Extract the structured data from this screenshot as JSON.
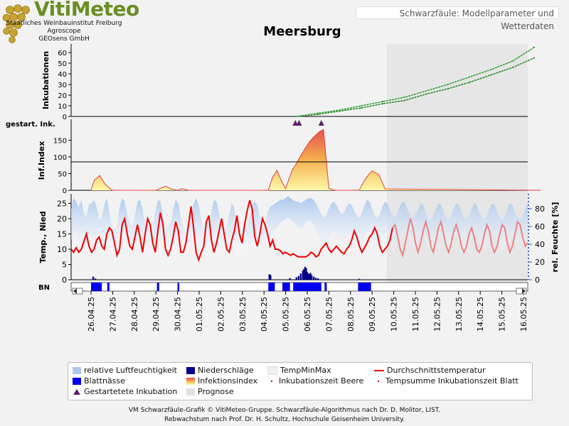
{
  "header": {
    "brand_title": "VitiMeteo",
    "brand_lines": [
      "Staatliches Weinbauinstitut Freiburg",
      "Agroscope",
      "GEOsens GmbH"
    ],
    "subtitle": "Schwarzfäule: Modellparameter und Wetterdaten"
  },
  "chart_data": {
    "type": "line",
    "title": "Meersburg",
    "dates": [
      "26.04.25",
      "27.04.25",
      "28.04.25",
      "29.04.25",
      "30.04.25",
      "01.05.25",
      "02.05.25",
      "03.05.25",
      "04.05.25",
      "05.05.25",
      "06.05.25",
      "07.05.25",
      "08.05.25",
      "09.05.25",
      "10.05.25",
      "11.05.25",
      "12.05.25",
      "13.05.25",
      "14.05.25",
      "15.05.25",
      "16.05.25"
    ],
    "forecast_start_day": 14,
    "panels": {
      "inkubationen": {
        "ylabel": "Inkubationen",
        "yticks": [
          0,
          10,
          20,
          30,
          40,
          50,
          60
        ],
        "series": [
          {
            "name": "Inkubationszeit Beere",
            "x": [
              9.5,
              10.5,
              11.5,
              12.5,
              13.5,
              14.5,
              15.5,
              16.5,
              17.5,
              18.5,
              19.5,
              20.5
            ],
            "y": [
              0,
              2,
              5,
              8,
              12,
              15,
              21,
              26,
              32,
              39,
              46,
              55
            ]
          },
          {
            "name": "Tempsumme Inkubationszeit Blatt",
            "x": [
              9.5,
              10.5,
              11.5,
              12.5,
              13.5,
              14.5,
              15.5,
              16.5,
              17.5,
              18.5,
              19.5,
              20.5
            ],
            "y": [
              0,
              3,
              6,
              10,
              14,
              18,
              24,
              30,
              37,
              44,
              52,
              65
            ]
          }
        ]
      },
      "gestartete_inkubation": {
        "label": "gestart. Ink.",
        "x": [
          9.45,
          9.62,
          10.65
        ]
      },
      "infektionsindex": {
        "ylabel": "Inf.Index",
        "yticks": [
          0,
          50,
          100,
          150
        ],
        "threshold": 85,
        "x": [
          0,
          0.15,
          0.4,
          0.65,
          0.9,
          1,
          3,
          3.2,
          3.45,
          3.7,
          4,
          4.2,
          4.5,
          8.2,
          8.4,
          8.6,
          8.85,
          9,
          9.3,
          9.5,
          9.7,
          9.9,
          10.1,
          10.3,
          10.55,
          10.75,
          11,
          11.3,
          12.4,
          12.65,
          12.85,
          13,
          13.3,
          13.6,
          20.8
        ],
        "y": [
          0,
          30,
          44,
          18,
          4,
          0,
          0,
          5,
          12,
          4,
          0,
          5,
          0,
          0,
          40,
          60,
          22,
          5,
          60,
          80,
          104,
          125,
          145,
          160,
          175,
          182,
          5,
          0,
          0,
          30,
          48,
          58,
          48,
          4,
          0
        ]
      },
      "wetter": {
        "ylabel_left": "Temp., Nied",
        "ylabel_right": "rel. Feuchte [%]",
        "yticks_left": [
          0,
          5,
          10,
          15,
          20,
          25
        ],
        "yticks_right": [
          0,
          20,
          40,
          60,
          80
        ],
        "temperature_mean": [
          10,
          9,
          10.5,
          9,
          10,
          12.5,
          15,
          11,
          9,
          10,
          13,
          14,
          11,
          10,
          15,
          17,
          16,
          12,
          8,
          10,
          18,
          20,
          15,
          11,
          10,
          14,
          18,
          14,
          9,
          15,
          20,
          18,
          12,
          9,
          16,
          22,
          18,
          10,
          8,
          10,
          14,
          19,
          16,
          9,
          9,
          12,
          18,
          24,
          17,
          9,
          6.5,
          9,
          11,
          19,
          21,
          13,
          9,
          12,
          16,
          20,
          15,
          10,
          9,
          13,
          16,
          21,
          15,
          12,
          18,
          22.5,
          26,
          23,
          14,
          11,
          15,
          20,
          18,
          15,
          11,
          13,
          10,
          10,
          9.5,
          8.5,
          9,
          8.5,
          8,
          8.5,
          8,
          7.5,
          7.5,
          7.5,
          7.5,
          8,
          9,
          8.5,
          7.5,
          8,
          10,
          11,
          12,
          10,
          9,
          10,
          11,
          10,
          9,
          8.5,
          10,
          11,
          13,
          16,
          14,
          11,
          9,
          10.5,
          12,
          14,
          15,
          17,
          15,
          11,
          9,
          10,
          11,
          13,
          17,
          18,
          14,
          10,
          8,
          12,
          16,
          20,
          17,
          12,
          9,
          12,
          16,
          19,
          16,
          11,
          9,
          13,
          17,
          19,
          15,
          11,
          9,
          12,
          16,
          18,
          15,
          11,
          9,
          11,
          15,
          17,
          14,
          10,
          9,
          11,
          15,
          18,
          16,
          11,
          9,
          11,
          15,
          18,
          17,
          12,
          9,
          11,
          15,
          19,
          18,
          14,
          11,
          12
        ],
        "humidity_upper": [
          80,
          92,
          88,
          82,
          90,
          75,
          70,
          85,
          86,
          90,
          82,
          68,
          70,
          84,
          92,
          76,
          60,
          56,
          62,
          82,
          92,
          88,
          74,
          64,
          60,
          72,
          88,
          90,
          80,
          62,
          58,
          56,
          60,
          76,
          90,
          88,
          72,
          60,
          58,
          64,
          80,
          90,
          86,
          70,
          58,
          54,
          60,
          74,
          86,
          92,
          84,
          68,
          58,
          54,
          62,
          76,
          90,
          88,
          74,
          60,
          56,
          60,
          74,
          86,
          80,
          64,
          54,
          48,
          50,
          58,
          72,
          84,
          88,
          84,
          70,
          58,
          60,
          76,
          82,
          84,
          86,
          88,
          90,
          90,
          92,
          94,
          92,
          90,
          88,
          88,
          86,
          88,
          90,
          92,
          92,
          90,
          86,
          80,
          74,
          70,
          72,
          80,
          86,
          88,
          84,
          78,
          74,
          76,
          82,
          86,
          84,
          78,
          72,
          70,
          76,
          84,
          90,
          88,
          80,
          72,
          70,
          74,
          82,
          88,
          86,
          78,
          72,
          70,
          76,
          84,
          88,
          86,
          78,
          72,
          70,
          74,
          80,
          86,
          84,
          76,
          70,
          68,
          72,
          80,
          86,
          84,
          76,
          70,
          68,
          72,
          80,
          86,
          84,
          76,
          70,
          68,
          72,
          80,
          86,
          84,
          76,
          70,
          68,
          72,
          80,
          86,
          84,
          76,
          70,
          68,
          72,
          80,
          86,
          84,
          76,
          70,
          68,
          72,
          80,
          86
        ],
        "humidity_lower": [
          45,
          50,
          55,
          40,
          42,
          36,
          38,
          44,
          50,
          48,
          40,
          32,
          30,
          38,
          52,
          46,
          30,
          28,
          35,
          48,
          56,
          50,
          36,
          30,
          28,
          34,
          48,
          52,
          44,
          32,
          28,
          26,
          30,
          42,
          52,
          50,
          38,
          30,
          28,
          32,
          44,
          54,
          48,
          36,
          28,
          26,
          30,
          40,
          50,
          54,
          46,
          34,
          28,
          26,
          30,
          40,
          54,
          50,
          38,
          30,
          28,
          30,
          40,
          50,
          44,
          32,
          26,
          24,
          26,
          30,
          38,
          46,
          50,
          46,
          36,
          30,
          32,
          42,
          48,
          52,
          56,
          60,
          64,
          66,
          68,
          70,
          68,
          66,
          62,
          60,
          58,
          60,
          64,
          66,
          66,
          62,
          56,
          48,
          40,
          36,
          38,
          46,
          52,
          56,
          50,
          44,
          40,
          42,
          48,
          54,
          50,
          44,
          38,
          36,
          40,
          48,
          56,
          52,
          44,
          38,
          36,
          40,
          48,
          54,
          50,
          44,
          38,
          36,
          42,
          50,
          54,
          50,
          44,
          38,
          36,
          40,
          46,
          52,
          48,
          42,
          36,
          34,
          38,
          46,
          52,
          48,
          42,
          36,
          34,
          38,
          46,
          52,
          48,
          42,
          36,
          34,
          38,
          46,
          52,
          48,
          42,
          36,
          34,
          38,
          46,
          52,
          48,
          42,
          36,
          34,
          38,
          46,
          52,
          48,
          42,
          36,
          34,
          38,
          46,
          52
        ],
        "precipitation_x": [
          0.1,
          0.2,
          8.25,
          8.3,
          9.2,
          9.5,
          9.6,
          9.7,
          9.8,
          9.85,
          9.9,
          9.95,
          10.0,
          10.05,
          10.1,
          10.15,
          10.2,
          10.3,
          10.4,
          10.5,
          12.4
        ],
        "precipitation_y": [
          1.0,
          0.4,
          1.8,
          1.5,
          0.5,
          0.8,
          1.2,
          2.0,
          3.0,
          3.5,
          4.2,
          3.8,
          2.5,
          2.0,
          1.8,
          2.2,
          1.5,
          1.0,
          0.6,
          0.4,
          0.3
        ]
      },
      "blattnaesse": {
        "label": "BN",
        "intervals": [
          [
            0,
            0.5
          ],
          [
            0.75,
            0.85
          ],
          [
            3.05,
            3.15
          ],
          [
            4.0,
            4.08
          ],
          [
            8.2,
            8.5
          ],
          [
            8.85,
            9.2
          ],
          [
            9.35,
            10.65
          ],
          [
            10.8,
            10.9
          ],
          [
            12.35,
            12.95
          ]
        ]
      }
    },
    "legend": [
      {
        "label": "relative Luftfeuchtigkeit",
        "color": "#a8c8ef",
        "kind": "box"
      },
      {
        "label": "Niederschläge",
        "color": "#00008b",
        "kind": "box"
      },
      {
        "label": "TempMinMax",
        "color": "#eeeeee",
        "kind": "box"
      },
      {
        "label": "Durchschnittstemperatur",
        "color": "#ee0000",
        "kind": "line"
      },
      {
        "label": "Blattnässe",
        "color": "#0000ee",
        "kind": "box"
      },
      {
        "label": "Infektionsindex",
        "color": "#f5c04a",
        "kind": "gradient"
      },
      {
        "label": "Inkubationszeit Beere",
        "color": "#cc0000",
        "kind": "dot"
      },
      {
        "label": "Tempsumme Inkubationszeit Blatt",
        "color": "#cc0000",
        "kind": "dot"
      },
      {
        "label": "Gestartetete Inkubation",
        "color": "#5a1f6a",
        "kind": "triangle"
      },
      {
        "label": "Prognose",
        "color": "#e0e0e0",
        "kind": "box"
      }
    ]
  },
  "footer": {
    "line1": "VM Schwarzfäule-Grafik © VitiMeteo-Gruppe. Schwarzfäule-Algorithmus nach Dr. D. Molitor, LIST.",
    "line2": "Rebwachstum nach Prof. Dr. H. Schultz, Hochschule Geisenheim University."
  }
}
